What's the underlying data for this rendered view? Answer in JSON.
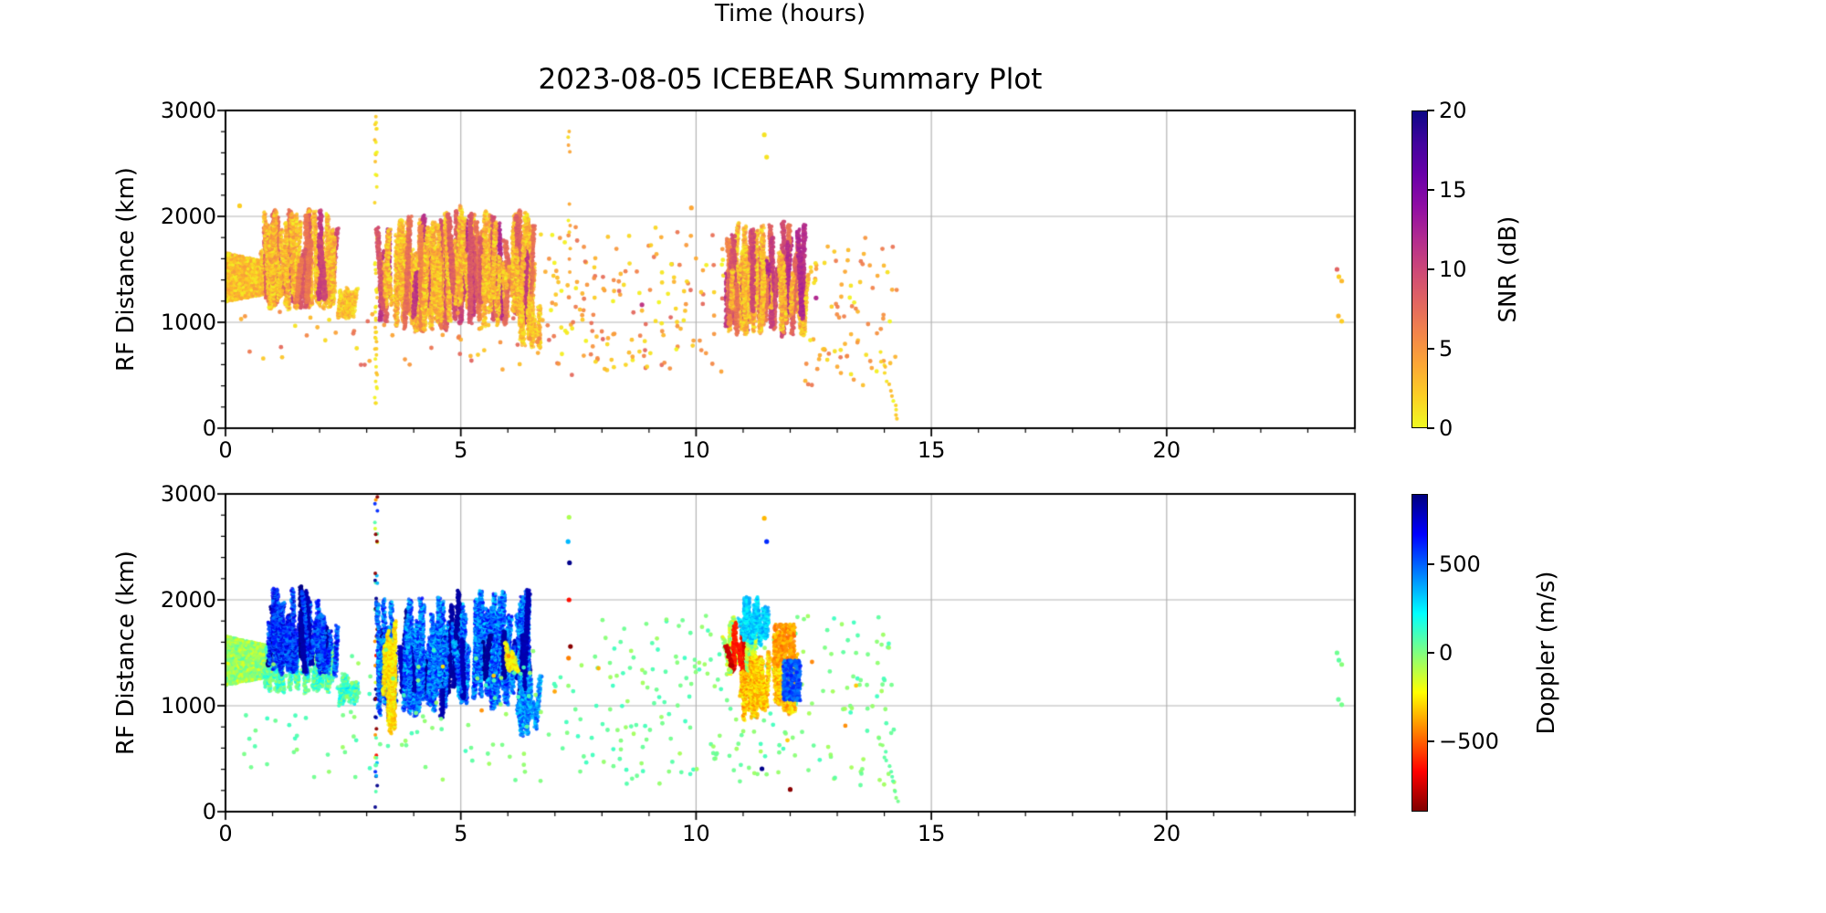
{
  "title": "2023-08-05 ICEBEAR Summary Plot",
  "xlabel": "Time (hours)",
  "colormaps": {
    "plasma": [
      [
        0,
        "#0d0887"
      ],
      [
        0.1,
        "#41049d"
      ],
      [
        0.2,
        "#6a00a8"
      ],
      [
        0.3,
        "#8f0da4"
      ],
      [
        0.4,
        "#b12a90"
      ],
      [
        0.5,
        "#cc4778"
      ],
      [
        0.6,
        "#e16462"
      ],
      [
        0.7,
        "#f2844b"
      ],
      [
        0.8,
        "#fca636"
      ],
      [
        0.9,
        "#fcce25"
      ],
      [
        1,
        "#f0f921"
      ]
    ],
    "jet": [
      [
        0,
        "#000080"
      ],
      [
        0.125,
        "#0000ff"
      ],
      [
        0.375,
        "#00ffff"
      ],
      [
        0.5,
        "#80ff80"
      ],
      [
        0.625,
        "#ffff00"
      ],
      [
        0.875,
        "#ff0000"
      ],
      [
        1,
        "#800000"
      ]
    ]
  },
  "chart_data": {
    "type": "scatter",
    "title": "2023-08-05 ICEBEAR Summary Plot",
    "xlabel": "Time (hours)",
    "panels": [
      {
        "name": "snr",
        "ylabel": "RF Distance (km)",
        "xlim": [
          0,
          24
        ],
        "ylim": [
          0,
          3000
        ],
        "grid": true,
        "xticks": [
          {
            "v": 0,
            "label": "0"
          },
          {
            "v": 5,
            "label": "5"
          },
          {
            "v": 10,
            "label": "10"
          },
          {
            "v": 15,
            "label": "15"
          },
          {
            "v": 20,
            "label": "20"
          }
        ],
        "yticks": [
          {
            "v": 0,
            "label": "0"
          },
          {
            "v": 1000,
            "label": "1000"
          },
          {
            "v": 2000,
            "label": "2000"
          },
          {
            "v": 3000,
            "label": "3000"
          }
        ],
        "colorbar": {
          "label": "SNR (dB)",
          "vmin": 0,
          "vmax": 20,
          "colormap": "plasma",
          "reversed": true,
          "ticks": [
            {
              "v": 0,
              "label": "0"
            },
            {
              "v": 5,
              "label": "5"
            },
            {
              "v": 10,
              "label": "10"
            },
            {
              "v": 15,
              "label": "15"
            },
            {
              "v": 20,
              "label": "20"
            }
          ]
        },
        "clusters": [
          {
            "kind": "wedge",
            "t": [
              0.0,
              1.0
            ],
            "rf_top": [
              1660,
              1560
            ],
            "rf_bot": [
              1190,
              1275
            ],
            "n": 3000,
            "value": [
              0,
              5
            ]
          },
          {
            "kind": "streaks",
            "t": [
              0.85,
              2.35
            ],
            "rf_base": [
              1120,
              1360
            ],
            "rf_top": [
              1480,
              2080
            ],
            "n_streaks": 60,
            "value": [
              0,
              6
            ],
            "core_frac": 0.35,
            "core_value": [
              6,
              11
            ]
          },
          {
            "kind": "streaks",
            "t": [
              2.38,
              2.8
            ],
            "rf_base": [
              1020,
              1130
            ],
            "rf_top": [
              1160,
              1330
            ],
            "n_streaks": 10,
            "value": [
              0,
              5
            ]
          },
          {
            "kind": "column",
            "t": 3.2,
            "rf": [
              30,
              2980
            ],
            "n": 50,
            "value": [
              0,
              3
            ]
          },
          {
            "kind": "streaks",
            "t": [
              3.25,
              4.72
            ],
            "rf_base": [
              890,
              1260
            ],
            "rf_top": [
              1380,
              2030
            ],
            "n_streaks": 55,
            "value": [
              0,
              6
            ],
            "core_frac": 0.4,
            "core_value": [
              6,
              12
            ]
          },
          {
            "kind": "streaks",
            "t": [
              4.75,
              6.5
            ],
            "rf_base": [
              950,
              1360
            ],
            "rf_top": [
              1500,
              2100
            ],
            "n_streaks": 62,
            "value": [
              0,
              6
            ],
            "core_frac": 0.5,
            "core_value": [
              6,
              12
            ]
          },
          {
            "kind": "streaks",
            "t": [
              6.18,
              6.68
            ],
            "rf_base": [
              700,
              900
            ],
            "rf_top": [
              1000,
              1360
            ],
            "n_streaks": 9,
            "value": [
              0,
              5
            ]
          },
          {
            "kind": "sparse",
            "t": [
              0.2,
              6.8
            ],
            "rf": [
              550,
              1100
            ],
            "n": 55,
            "value": [
              1,
              8
            ]
          },
          {
            "kind": "sparse",
            "t": [
              6.6,
              10.6
            ],
            "rf": [
              500,
              1900
            ],
            "n": 175,
            "value": [
              0,
              8
            ]
          },
          {
            "kind": "column",
            "t": 7.3,
            "rf": [
              1350,
              2850
            ],
            "n": 11,
            "value": [
              0,
              6
            ]
          },
          {
            "kind": "streaks",
            "t": [
              10.62,
              12.3
            ],
            "rf_base": [
              860,
              1260
            ],
            "rf_top": [
              1320,
              1970
            ],
            "n_streaks": 58,
            "value": [
              0,
              6
            ],
            "core_frac": 0.45,
            "core_value": [
              6,
              12
            ]
          },
          {
            "kind": "sparse",
            "t": [
              12.3,
              14.3
            ],
            "rf": [
              400,
              1800
            ],
            "n": 85,
            "value": [
              0,
              7
            ]
          },
          {
            "kind": "trail",
            "t": [
              13.9,
              14.3
            ],
            "rf": [
              700,
              80
            ],
            "n": 14,
            "value": [
              0,
              3
            ]
          },
          {
            "kind": "dots",
            "points": [
              [
                0.3,
                2100,
                2
              ],
              [
                9.9,
                2080,
                4
              ],
              [
                11.45,
                2770,
                1
              ],
              [
                11.5,
                2560,
                1
              ],
              [
                12.55,
                1230,
                12
              ],
              [
                8.85,
                1165,
                11
              ],
              [
                23.62,
                1500,
                8
              ],
              [
                23.66,
                1430,
                2
              ],
              [
                23.72,
                1390,
                3
              ],
              [
                23.65,
                1060,
                3
              ],
              [
                23.72,
                1010,
                2
              ]
            ]
          }
        ]
      },
      {
        "name": "doppler",
        "ylabel": "RF Distance (km)",
        "xlim": [
          0,
          24
        ],
        "ylim": [
          0,
          3000
        ],
        "grid": true,
        "xticks": [
          {
            "v": 0,
            "label": "0"
          },
          {
            "v": 5,
            "label": "5"
          },
          {
            "v": 10,
            "label": "10"
          },
          {
            "v": 15,
            "label": "15"
          },
          {
            "v": 20,
            "label": "20"
          }
        ],
        "yticks": [
          {
            "v": 0,
            "label": "0"
          },
          {
            "v": 1000,
            "label": "1000"
          },
          {
            "v": 2000,
            "label": "2000"
          },
          {
            "v": 3000,
            "label": "3000"
          }
        ],
        "colorbar": {
          "label": "Doppler (m/s)",
          "vmin": -900,
          "vmax": 900,
          "colormap": "jet",
          "reversed": true,
          "ticks": [
            {
              "v": 500,
              "label": "500"
            },
            {
              "v": 0,
              "label": "0"
            },
            {
              "v": -500,
              "label": "−500"
            }
          ]
        },
        "clusters": [
          {
            "kind": "wedge",
            "t": [
              0.0,
              1.0
            ],
            "rf_top": [
              1660,
              1560
            ],
            "rf_bot": [
              1190,
              1275
            ],
            "n": 3000,
            "value": [
              -200,
              100
            ]
          },
          {
            "kind": "streaks",
            "t": [
              0.85,
              2.35
            ],
            "rf_base": [
              1110,
              1300
            ],
            "rf_top": [
              1320,
              1600
            ],
            "n_streaks": 30,
            "value": [
              -100,
              280
            ]
          },
          {
            "kind": "streaks",
            "t": [
              0.9,
              2.35
            ],
            "rf_base": [
              1280,
              1520
            ],
            "rf_top": [
              1650,
              2130
            ],
            "n_streaks": 38,
            "value": [
              380,
              780
            ],
            "core_frac": 0.35,
            "core_value": [
              800,
              895
            ]
          },
          {
            "kind": "streaks",
            "t": [
              2.38,
              2.8
            ],
            "rf_base": [
              1000,
              1120
            ],
            "rf_top": [
              1160,
              1330
            ],
            "n_streaks": 10,
            "value": [
              -60,
              300
            ]
          },
          {
            "kind": "column",
            "t": 3.2,
            "rf": [
              20,
              2980
            ],
            "n": 52,
            "values_choice": [
              -880,
              -650,
              -420,
              -150,
              80,
              350,
              600,
              880,
              -880,
              880
            ]
          },
          {
            "kind": "streaks",
            "t": [
              3.25,
              4.72
            ],
            "rf_base": [
              890,
              1260
            ],
            "rf_top": [
              1380,
              2030
            ],
            "n_streaks": 52,
            "value": [
              260,
              720
            ],
            "core_frac": 0.18,
            "core_value": [
              790,
              890
            ]
          },
          {
            "kind": "streaks",
            "t": [
              3.3,
              3.62
            ],
            "rf_base": [
              650,
              1250
            ],
            "rf_top": [
              1350,
              1800
            ],
            "n_streaks": 7,
            "value": [
              -380,
              -160
            ]
          },
          {
            "kind": "streaks",
            "t": [
              4.75,
              6.5
            ],
            "rf_base": [
              950,
              1360
            ],
            "rf_top": [
              1500,
              2100
            ],
            "n_streaks": 60,
            "value": [
              260,
              720
            ],
            "core_frac": 0.22,
            "core_value": [
              790,
              890
            ]
          },
          {
            "kind": "streaks",
            "t": [
              6.0,
              6.35
            ],
            "rf_base": [
              1300,
              1400
            ],
            "rf_top": [
              1450,
              1620
            ],
            "n_streaks": 6,
            "value": [
              -350,
              -150
            ]
          },
          {
            "kind": "streaks",
            "t": [
              6.18,
              6.68
            ],
            "rf_base": [
              700,
              900
            ],
            "rf_top": [
              1000,
              1360
            ],
            "n_streaks": 9,
            "value": [
              250,
              600
            ]
          },
          {
            "kind": "sparse",
            "t": [
              0.3,
              8.0
            ],
            "rf": [
              250,
              1550
            ],
            "n": 120,
            "value": [
              -70,
              120
            ]
          },
          {
            "kind": "sparse",
            "t": [
              8.0,
              14.3
            ],
            "rf": [
              250,
              1850
            ],
            "n": 235,
            "value": [
              -70,
              120
            ]
          },
          {
            "kind": "sparse",
            "t": [
              2.0,
              13.5
            ],
            "rf": [
              600,
              1600
            ],
            "n": 10,
            "value": [
              -480,
              -260
            ]
          },
          {
            "kind": "dots",
            "points": [
              [
                7.3,
                2780,
                -80
              ],
              [
                7.28,
                2550,
                350
              ],
              [
                7.31,
                2350,
                880
              ],
              [
                7.3,
                2000,
                -650
              ],
              [
                7.33,
                1560,
                -880
              ],
              [
                7.29,
                1450,
                -450
              ]
            ]
          },
          {
            "kind": "streaks",
            "t": [
              10.65,
              11.2
            ],
            "rf_base": [
              1260,
              1450
            ],
            "rf_top": [
              1560,
              1860
            ],
            "n_streaks": 16,
            "value": [
              -260,
              90
            ],
            "core_frac": 0.3,
            "core_value": [
              -880,
              -560
            ]
          },
          {
            "kind": "streaks",
            "t": [
              10.95,
              11.55
            ],
            "rf_base": [
              1550,
              1680
            ],
            "rf_top": [
              1780,
              2030
            ],
            "n_streaks": 14,
            "value": [
              180,
              430
            ]
          },
          {
            "kind": "streaks",
            "t": [
              10.95,
              12.1
            ],
            "rf_base": [
              860,
              1110
            ],
            "rf_top": [
              1260,
              1510
            ],
            "n_streaks": 26,
            "value": [
              -460,
              -170
            ]
          },
          {
            "kind": "blob",
            "t": [
              11.65,
              12.1
            ],
            "rf": [
              1380,
              1770
            ],
            "n": 420,
            "value": [
              -500,
              -290
            ]
          },
          {
            "kind": "blob",
            "t": [
              11.85,
              12.22
            ],
            "rf": [
              1050,
              1430
            ],
            "n": 300,
            "value": [
              430,
              640
            ]
          },
          {
            "kind": "dots",
            "points": [
              [
                11.45,
                2770,
                -350
              ],
              [
                11.5,
                2550,
                600
              ],
              [
                11.4,
                405,
                880
              ],
              [
                12.0,
                210,
                -880
              ]
            ]
          },
          {
            "kind": "trail",
            "t": [
              13.9,
              14.3
            ],
            "rf": [
              700,
              80
            ],
            "n": 14,
            "value": [
              -40,
              80
            ]
          },
          {
            "kind": "dots",
            "points": [
              [
                23.62,
                1500,
                30
              ],
              [
                23.66,
                1430,
                60
              ],
              [
                23.72,
                1390,
                -10
              ],
              [
                23.65,
                1060,
                40
              ],
              [
                23.72,
                1010,
                20
              ]
            ]
          }
        ]
      }
    ]
  }
}
